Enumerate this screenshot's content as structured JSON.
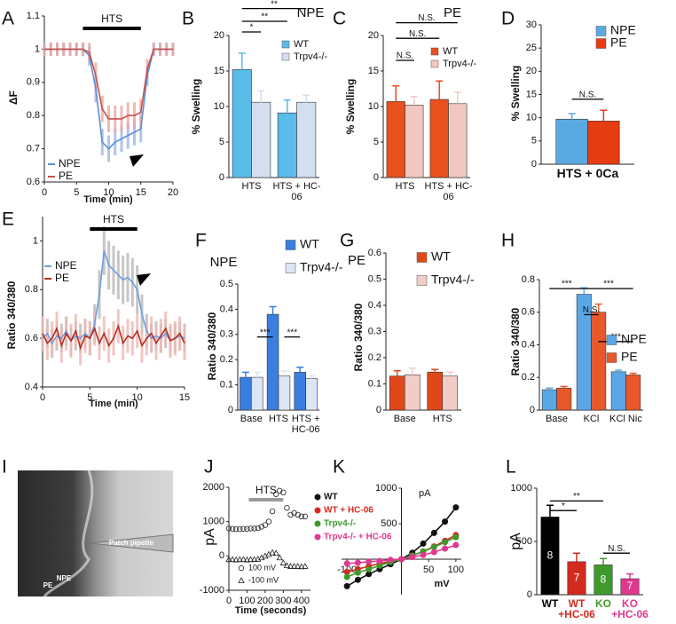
{
  "chart_data": [
    {
      "panel": "A",
      "type": "line",
      "ylabel": "ΔF",
      "xlabel": "Time (min)",
      "x": [
        0,
        1,
        2,
        3,
        4,
        5,
        6,
        7,
        8,
        9,
        10,
        11,
        12,
        13,
        14,
        15,
        16,
        17,
        18,
        19,
        20
      ],
      "series": [
        {
          "name": "NPE",
          "color": "#5b8fd6",
          "error_color": "#9db9e8",
          "values": [
            1,
            1,
            1,
            1,
            1,
            1,
            1,
            0.98,
            0.88,
            0.72,
            0.7,
            0.72,
            0.73,
            0.74,
            0.75,
            0.76,
            0.92,
            1,
            1,
            1,
            1
          ],
          "errors": [
            0.02,
            0.02,
            0.02,
            0.02,
            0.02,
            0.02,
            0.02,
            0.03,
            0.04,
            0.04,
            0.04,
            0.04,
            0.04,
            0.04,
            0.04,
            0.04,
            0.03,
            0.02,
            0.02,
            0.02,
            0.02
          ]
        },
        {
          "name": "PE",
          "color": "#c9504a",
          "error_color": "#e9a9a3",
          "values": [
            1,
            1,
            1,
            1,
            1,
            1,
            1,
            0.99,
            0.92,
            0.82,
            0.79,
            0.79,
            0.79,
            0.8,
            0.8,
            0.81,
            0.94,
            1,
            1,
            1,
            1
          ],
          "errors": [
            0.02,
            0.02,
            0.02,
            0.02,
            0.02,
            0.02,
            0.02,
            0.03,
            0.04,
            0.04,
            0.04,
            0.04,
            0.04,
            0.04,
            0.04,
            0.04,
            0.03,
            0.02,
            0.02,
            0.02,
            0.02
          ]
        }
      ],
      "xlim": [
        0,
        20
      ],
      "xticks": [
        0,
        5,
        10,
        15,
        20
      ],
      "ylim": [
        0.6,
        1.1
      ],
      "yticks": [
        0.6,
        0.7,
        0.8,
        0.9,
        1,
        1.1
      ],
      "hts": {
        "label": "HTS",
        "start": 6,
        "end": 15
      }
    },
    {
      "panel": "B",
      "type": "bar",
      "title": "NPE",
      "ylabel": "% Swelling",
      "categories": [
        "HTS",
        "HTS + HC-06"
      ],
      "series": [
        {
          "name": "WT",
          "color": "#5bbbe9",
          "values": [
            15.2,
            9.1
          ],
          "errors": [
            2.3,
            1.8
          ]
        },
        {
          "name": "Trpv4-/-",
          "color": "#d3dff0",
          "values": [
            10.6,
            10.6
          ],
          "errors": [
            1.6,
            1.0
          ]
        }
      ],
      "ylim": [
        0,
        20
      ],
      "yticks": [
        0,
        5,
        10,
        15,
        20
      ],
      "annotations": [
        "**",
        "**",
        "*"
      ]
    },
    {
      "panel": "C",
      "type": "bar",
      "title": "PE",
      "ylabel": "% Swelling",
      "categories": [
        "HTS",
        "HTS + HC-06"
      ],
      "series": [
        {
          "name": "WT",
          "color": "#e8501e",
          "values": [
            10.7,
            11.0
          ],
          "errors": [
            2.2,
            2.6
          ]
        },
        {
          "name": "Trpv4-/-",
          "color": "#f1c8c1",
          "values": [
            10.2,
            10.4
          ],
          "errors": [
            1.2,
            1.6
          ]
        }
      ],
      "ylim": [
        0,
        20
      ],
      "yticks": [
        0,
        5,
        10,
        15,
        20
      ],
      "annotations": [
        "N.S.",
        "N.S.",
        "N.S."
      ]
    },
    {
      "panel": "D",
      "type": "bar",
      "ylabel": "% Swelling",
      "categories": [
        "HTS + 0Ca"
      ],
      "series": [
        {
          "name": "NPE",
          "color": "#5aaae2",
          "values": [
            9.7
          ],
          "errors": [
            1.2
          ]
        },
        {
          "name": "PE",
          "color": "#e53c12",
          "values": [
            9.3
          ],
          "errors": [
            2.3
          ]
        }
      ],
      "ylim": [
        0,
        30
      ],
      "yticks": [
        0,
        5,
        10,
        15,
        20,
        25,
        30
      ],
      "annotations": [
        "N.S."
      ]
    },
    {
      "panel": "E",
      "type": "line",
      "ylabel": "Ratio 340/380",
      "xlabel": "Time (min)",
      "x": [
        0,
        0.5,
        1,
        1.5,
        2,
        2.5,
        3,
        3.5,
        4,
        4.5,
        5,
        5.5,
        6,
        6.5,
        7,
        7.5,
        8,
        8.5,
        9,
        9.5,
        10,
        10.5,
        11,
        11.5,
        12,
        12.5,
        13,
        13.5,
        14,
        14.5,
        15
      ],
      "series": [
        {
          "name": "NPE",
          "color": "#6f9ee0",
          "error_color": "#b8b8b8",
          "values": [
            0.6,
            0.62,
            0.58,
            0.61,
            0.6,
            0.63,
            0.59,
            0.61,
            0.6,
            0.62,
            0.6,
            0.66,
            0.78,
            0.96,
            0.9,
            0.88,
            0.86,
            0.84,
            0.85,
            0.83,
            0.8,
            0.7,
            0.63,
            0.6,
            0.61,
            0.6,
            0.62,
            0.59,
            0.6,
            0.61,
            0.6
          ],
          "errors": [
            0.06,
            0.06,
            0.06,
            0.06,
            0.06,
            0.06,
            0.06,
            0.06,
            0.06,
            0.06,
            0.07,
            0.08,
            0.1,
            0.1,
            0.1,
            0.1,
            0.1,
            0.1,
            0.1,
            0.1,
            0.1,
            0.08,
            0.07,
            0.06,
            0.06,
            0.06,
            0.06,
            0.06,
            0.06,
            0.06,
            0.06
          ]
        },
        {
          "name": "PE",
          "color": "#b52e20",
          "error_color": "#f0b9b3",
          "values": [
            0.62,
            0.58,
            0.6,
            0.64,
            0.57,
            0.62,
            0.59,
            0.63,
            0.56,
            0.61,
            0.6,
            0.64,
            0.58,
            0.62,
            0.57,
            0.6,
            0.65,
            0.58,
            0.61,
            0.6,
            0.63,
            0.57,
            0.6,
            0.62,
            0.58,
            0.61,
            0.64,
            0.59,
            0.6,
            0.62,
            0.58
          ],
          "errors": [
            0.07,
            0.07,
            0.07,
            0.07,
            0.07,
            0.07,
            0.07,
            0.07,
            0.07,
            0.07,
            0.07,
            0.07,
            0.07,
            0.07,
            0.07,
            0.07,
            0.07,
            0.07,
            0.07,
            0.07,
            0.07,
            0.07,
            0.07,
            0.07,
            0.07,
            0.07,
            0.07,
            0.07,
            0.07,
            0.07,
            0.07
          ]
        }
      ],
      "xlim": [
        0,
        15
      ],
      "xticks": [
        0,
        5,
        10,
        15
      ],
      "ylim": [
        0.4,
        1.1
      ],
      "yticks": [
        0.4,
        0.6,
        0.8,
        1
      ],
      "hts": {
        "label": "HTS",
        "start": 5,
        "end": 10
      }
    },
    {
      "panel": "F",
      "type": "bar",
      "title": "NPE",
      "ylabel": "Ratio 340/380",
      "categories": [
        "Base",
        "HTS",
        "HTS + HC-06"
      ],
      "series": [
        {
          "name": "WT",
          "color": "#3a7fe0",
          "values": [
            0.13,
            0.38,
            0.15
          ],
          "errors": [
            0.02,
            0.03,
            0.02
          ]
        },
        {
          "name": "Trpv4-/-",
          "color": "#dce6f5",
          "values": [
            0.13,
            0.135,
            0.125
          ],
          "errors": [
            0.02,
            0.02,
            0.01
          ]
        }
      ],
      "ylim": [
        0,
        0.5
      ],
      "yticks": [
        0,
        0.1,
        0.2,
        0.3,
        0.4,
        0.5
      ],
      "annotations": [
        "***",
        "***"
      ]
    },
    {
      "panel": "G",
      "type": "bar",
      "title": "PE",
      "ylabel": "Ratio 340/380",
      "categories": [
        "Base",
        "HTS"
      ],
      "series": [
        {
          "name": "WT",
          "color": "#e0481a",
          "values": [
            0.13,
            0.145
          ],
          "errors": [
            0.02,
            0.01
          ]
        },
        {
          "name": "Trpv4-/-",
          "color": "#f2cdc8",
          "values": [
            0.135,
            0.13
          ],
          "errors": [
            0.025,
            0.015
          ]
        }
      ],
      "ylim": [
        0,
        0.6
      ],
      "yticks": [
        0,
        0.1,
        0.2,
        0.3,
        0.4,
        0.5,
        0.6
      ]
    },
    {
      "panel": "H",
      "type": "bar",
      "ylabel": "Ratio 340/380",
      "categories": [
        "Base",
        "KCl",
        "KCl Nic"
      ],
      "series": [
        {
          "name": "NPE",
          "color": "#5aa7e8",
          "values": [
            0.125,
            0.71,
            0.235
          ],
          "errors": [
            0.01,
            0.04,
            0.01
          ]
        },
        {
          "name": "PE",
          "color": "#e8582a",
          "values": [
            0.135,
            0.6,
            0.215
          ],
          "errors": [
            0.01,
            0.05,
            0.01
          ]
        }
      ],
      "ylim": [
        0,
        0.8
      ],
      "yticks": [
        0,
        0.2,
        0.4,
        0.6,
        0.8
      ],
      "annotations": [
        "***",
        "***",
        "N.S.",
        "***"
      ]
    },
    {
      "panel": "I",
      "type": "image",
      "labels": [
        "Patch pipette",
        "PE",
        "NPE"
      ]
    },
    {
      "panel": "J",
      "type": "scatter",
      "ylabel": "pA",
      "xlabel": "Time (seconds)",
      "x": [
        0,
        20,
        40,
        60,
        80,
        100,
        120,
        140,
        160,
        180,
        200,
        220,
        240,
        260,
        280,
        300,
        320,
        340,
        360,
        380,
        400,
        420
      ],
      "series": [
        {
          "name": "100 mV",
          "marker": "circle",
          "color": "#222",
          "values": [
            800,
            790,
            780,
            780,
            790,
            790,
            800,
            800,
            810,
            850,
            900,
            1000,
            1300,
            1800,
            1900,
            1850,
            1400,
            1200,
            1250,
            1200,
            1150,
            1150
          ]
        },
        {
          "name": "-100 mV",
          "marker": "triangle",
          "color": "#222",
          "values": [
            -100,
            -100,
            -110,
            -100,
            -100,
            -110,
            -100,
            -100,
            -90,
            -50,
            0,
            50,
            100,
            80,
            -50,
            -200,
            -280,
            -300,
            -300,
            -300,
            -310,
            -300
          ]
        }
      ],
      "xlim": [
        0,
        450
      ],
      "xticks": [
        0,
        100,
        200,
        300,
        400
      ],
      "ylim": [
        -1000,
        2000
      ],
      "yticks": [
        -1000,
        0,
        1000,
        2000
      ],
      "hts": {
        "label": "HTS",
        "start": 110,
        "end": 300
      }
    },
    {
      "panel": "K",
      "type": "line",
      "markers": true,
      "axes": "cross",
      "ylabel": "pA",
      "xlabel": "mV",
      "x": [
        -100,
        -80,
        -60,
        -40,
        -20,
        0,
        20,
        40,
        60,
        80,
        100
      ],
      "series": [
        {
          "name": "WT",
          "color": "#111111",
          "values": [
            -380,
            -290,
            -210,
            -140,
            -70,
            0,
            90,
            220,
            370,
            530,
            730
          ]
        },
        {
          "name": "WT + HC-06",
          "color": "#d42a1e",
          "values": [
            -180,
            -140,
            -100,
            -60,
            -30,
            0,
            50,
            110,
            180,
            260,
            340
          ]
        },
        {
          "name": "Trpv4-/-",
          "color": "#3c9a2a",
          "values": [
            -250,
            -190,
            -140,
            -90,
            -40,
            0,
            50,
            110,
            170,
            240,
            310
          ]
        },
        {
          "name": "Trpv4-/- + HC-06",
          "color": "#e0388f",
          "values": [
            -60,
            -50,
            -35,
            -25,
            -10,
            0,
            30,
            60,
            100,
            150,
            200
          ]
        }
      ],
      "xlim": [
        -110,
        110
      ],
      "xticks": [
        -100,
        50,
        100
      ],
      "ylim": [
        -500,
        1000
      ],
      "yticks": [
        500,
        1000
      ]
    },
    {
      "panel": "L",
      "type": "bar",
      "ylabel": "pA",
      "categories": [
        "WT",
        "WT +HC-06",
        "KO",
        "KO +HC-06"
      ],
      "series": [
        {
          "colors": [
            "#000000",
            "#d32a1e",
            "#3f9a2c",
            "#e0388f"
          ],
          "values": [
            730,
            310,
            280,
            150
          ],
          "errors": [
            110,
            80,
            60,
            45
          ],
          "n": [
            8,
            7,
            8,
            7
          ]
        }
      ],
      "ylim": [
        0,
        1000
      ],
      "yticks": [
        0,
        500,
        1000
      ],
      "annotations": [
        "*",
        "**",
        "N.S."
      ]
    }
  ]
}
